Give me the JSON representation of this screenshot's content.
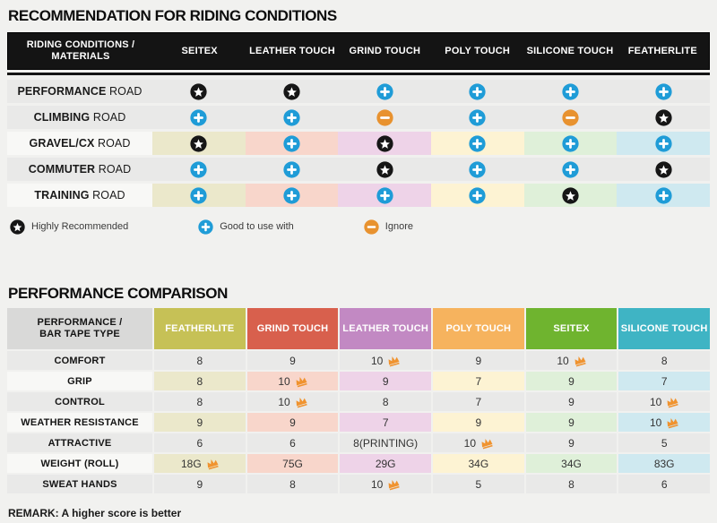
{
  "style": {
    "icon_star_bg": "#161616",
    "icon_plus_bg": "#1f9cd7",
    "icon_minus_bg": "#e8922f",
    "crown_color": "#f0932f",
    "row_gray": "#e9e9e8",
    "row_label_light": "#f8f8f6",
    "column_tints": [
      "#ebe8cb",
      "#f8d6cb",
      "#eed3e8",
      "#fdf3d3",
      "#dff0d9",
      "#cfe9f0"
    ],
    "header_black": "#141414",
    "corner_gray": "#d9d9d8"
  },
  "chart_data": [
    {
      "type": "table",
      "title": "RECOMMENDATION FOR RIDING CONDITIONS",
      "corner_header": [
        "RIDING CONDITIONS /",
        "MATERIALS"
      ],
      "columns": [
        "SEITEX",
        "LEATHER TOUCH",
        "GRIND TOUCH",
        "POLY TOUCH",
        "SILICONE TOUCH",
        "FEATHERLITE"
      ],
      "rating_icons": {
        "highly": "star",
        "good": "plus",
        "ignore": "minus"
      },
      "rows": [
        {
          "category": "PERFORMANCE",
          "category_suffix": "ROAD",
          "tinted": false,
          "ratings": [
            "highly",
            "highly",
            "good",
            "good",
            "good",
            "good"
          ]
        },
        {
          "category": "CLIMBING",
          "category_suffix": "ROAD",
          "tinted": false,
          "ratings": [
            "good",
            "good",
            "ignore",
            "good",
            "ignore",
            "highly"
          ]
        },
        {
          "category": "GRAVEL/CX",
          "category_suffix": "ROAD",
          "tinted": true,
          "ratings": [
            "highly",
            "good",
            "highly",
            "good",
            "good",
            "good"
          ]
        },
        {
          "category": "COMMUTER",
          "category_suffix": "ROAD",
          "tinted": false,
          "ratings": [
            "good",
            "good",
            "highly",
            "good",
            "good",
            "highly"
          ]
        },
        {
          "category": "TRAINING",
          "category_suffix": "ROAD",
          "tinted": true,
          "ratings": [
            "good",
            "good",
            "good",
            "good",
            "highly",
            "good"
          ]
        }
      ],
      "legend": [
        {
          "icon": "star",
          "label": "Highly Recommended"
        },
        {
          "icon": "plus",
          "label": "Good to use with"
        },
        {
          "icon": "minus",
          "label": "Ignore"
        }
      ]
    },
    {
      "type": "table",
      "title": "PERFORMANCE COMPARISON",
      "corner_header": [
        "PERFORMANCE /",
        "BAR TAPE TYPE"
      ],
      "columns": [
        {
          "label": "FEATHERLITE",
          "color": "#c6c156"
        },
        {
          "label": "GRIND TOUCH",
          "color": "#d8604d"
        },
        {
          "label": "LEATHER TOUCH",
          "color": "#c289c3"
        },
        {
          "label": "POLY TOUCH",
          "color": "#f6b35e"
        },
        {
          "label": "SEITEX",
          "color": "#6fb42f"
        },
        {
          "label": "SILICONE TOUCH",
          "color": "#3fb4c4"
        }
      ],
      "rows": [
        {
          "category": "COMFORT",
          "tinted": false,
          "values": [
            {
              "v": "8"
            },
            {
              "v": "9"
            },
            {
              "v": "10",
              "best": true
            },
            {
              "v": "9"
            },
            {
              "v": "10",
              "best": true
            },
            {
              "v": "8"
            }
          ]
        },
        {
          "category": "GRIP",
          "tinted": true,
          "values": [
            {
              "v": "8"
            },
            {
              "v": "10",
              "best": true
            },
            {
              "v": "9"
            },
            {
              "v": "7"
            },
            {
              "v": "9"
            },
            {
              "v": "7"
            }
          ]
        },
        {
          "category": "CONTROL",
          "tinted": false,
          "values": [
            {
              "v": "8"
            },
            {
              "v": "10",
              "best": true
            },
            {
              "v": "8"
            },
            {
              "v": "7"
            },
            {
              "v": "9"
            },
            {
              "v": "10",
              "best": true
            }
          ]
        },
        {
          "category": "WEATHER RESISTANCE",
          "tinted": true,
          "values": [
            {
              "v": "9"
            },
            {
              "v": "9"
            },
            {
              "v": "7"
            },
            {
              "v": "9"
            },
            {
              "v": "9"
            },
            {
              "v": "10",
              "best": true
            }
          ]
        },
        {
          "category": "ATTRACTIVE",
          "tinted": false,
          "values": [
            {
              "v": "6"
            },
            {
              "v": "6"
            },
            {
              "v": "8",
              "note": "(PRINTING)"
            },
            {
              "v": "10",
              "best": true
            },
            {
              "v": "9"
            },
            {
              "v": "5"
            }
          ]
        },
        {
          "category": "WEIGHT (ROLL)",
          "tinted": true,
          "values": [
            {
              "v": "18G",
              "best": true
            },
            {
              "v": "75G"
            },
            {
              "v": "29G"
            },
            {
              "v": "34G"
            },
            {
              "v": "34G"
            },
            {
              "v": "83G"
            }
          ]
        },
        {
          "category": "SWEAT HANDS",
          "tinted": false,
          "values": [
            {
              "v": "9"
            },
            {
              "v": "8"
            },
            {
              "v": "10",
              "best": true
            },
            {
              "v": "5"
            },
            {
              "v": "8"
            },
            {
              "v": "6"
            }
          ]
        }
      ],
      "remark": "REMARK: A higher score is better"
    }
  ]
}
